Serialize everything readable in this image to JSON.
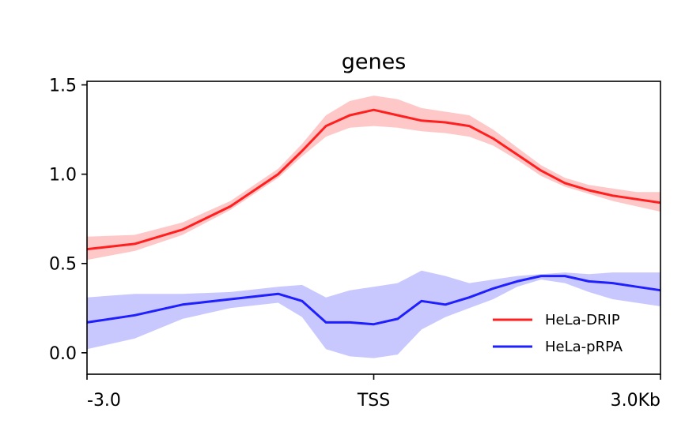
{
  "chart_data": {
    "type": "line",
    "title": "genes",
    "xlabel": "",
    "ylabel": "",
    "x_range": [
      -3.0,
      3.0
    ],
    "x_ticks": [
      {
        "value": -3.0,
        "label": "-3.0"
      },
      {
        "value": 0.0,
        "label": "TSS"
      },
      {
        "value": 3.0,
        "label": "3.0Kb"
      }
    ],
    "ylim": [
      -0.12,
      1.52
    ],
    "y_ticks": [
      {
        "value": 0.0,
        "label": "0.0"
      },
      {
        "value": 0.5,
        "label": "0.5"
      },
      {
        "value": 1.0,
        "label": "1.0"
      },
      {
        "value": 1.5,
        "label": "1.5"
      }
    ],
    "grid": false,
    "legend_position": "lower-right",
    "x": [
      -3.0,
      -2.5,
      -2.0,
      -1.5,
      -1.0,
      -0.75,
      -0.5,
      -0.25,
      0.0,
      0.25,
      0.5,
      0.75,
      1.0,
      1.25,
      1.5,
      1.75,
      2.0,
      2.25,
      2.5,
      2.75,
      3.0
    ],
    "series": [
      {
        "name": "HeLa-DRIP",
        "color": "#ff1f1f",
        "band_color": "#ffc8c8",
        "values": [
          0.58,
          0.61,
          0.69,
          0.82,
          1.0,
          1.13,
          1.27,
          1.33,
          1.36,
          1.33,
          1.3,
          1.29,
          1.27,
          1.2,
          1.11,
          1.02,
          0.95,
          0.91,
          0.88,
          0.86,
          0.84
        ],
        "band_low": [
          0.52,
          0.57,
          0.66,
          0.8,
          0.98,
          1.1,
          1.21,
          1.26,
          1.27,
          1.26,
          1.24,
          1.23,
          1.21,
          1.16,
          1.08,
          0.99,
          0.93,
          0.89,
          0.85,
          0.82,
          0.79
        ],
        "band_high": [
          0.65,
          0.66,
          0.73,
          0.85,
          1.03,
          1.17,
          1.33,
          1.41,
          1.44,
          1.42,
          1.37,
          1.35,
          1.33,
          1.25,
          1.15,
          1.05,
          0.98,
          0.94,
          0.92,
          0.9,
          0.9
        ]
      },
      {
        "name": "HeLa-pRPA",
        "color": "#1f1fff",
        "band_color": "#c8c8ff",
        "values": [
          0.17,
          0.21,
          0.27,
          0.3,
          0.33,
          0.29,
          0.17,
          0.17,
          0.16,
          0.19,
          0.29,
          0.27,
          0.31,
          0.36,
          0.4,
          0.43,
          0.43,
          0.4,
          0.39,
          0.37,
          0.35
        ],
        "band_low": [
          0.02,
          0.08,
          0.19,
          0.25,
          0.28,
          0.2,
          0.02,
          -0.02,
          -0.03,
          -0.01,
          0.13,
          0.2,
          0.25,
          0.3,
          0.37,
          0.41,
          0.39,
          0.34,
          0.3,
          0.28,
          0.26
        ],
        "band_high": [
          0.31,
          0.33,
          0.33,
          0.34,
          0.37,
          0.38,
          0.31,
          0.35,
          0.37,
          0.39,
          0.46,
          0.43,
          0.39,
          0.41,
          0.43,
          0.44,
          0.45,
          0.44,
          0.45,
          0.45,
          0.45
        ]
      }
    ]
  }
}
